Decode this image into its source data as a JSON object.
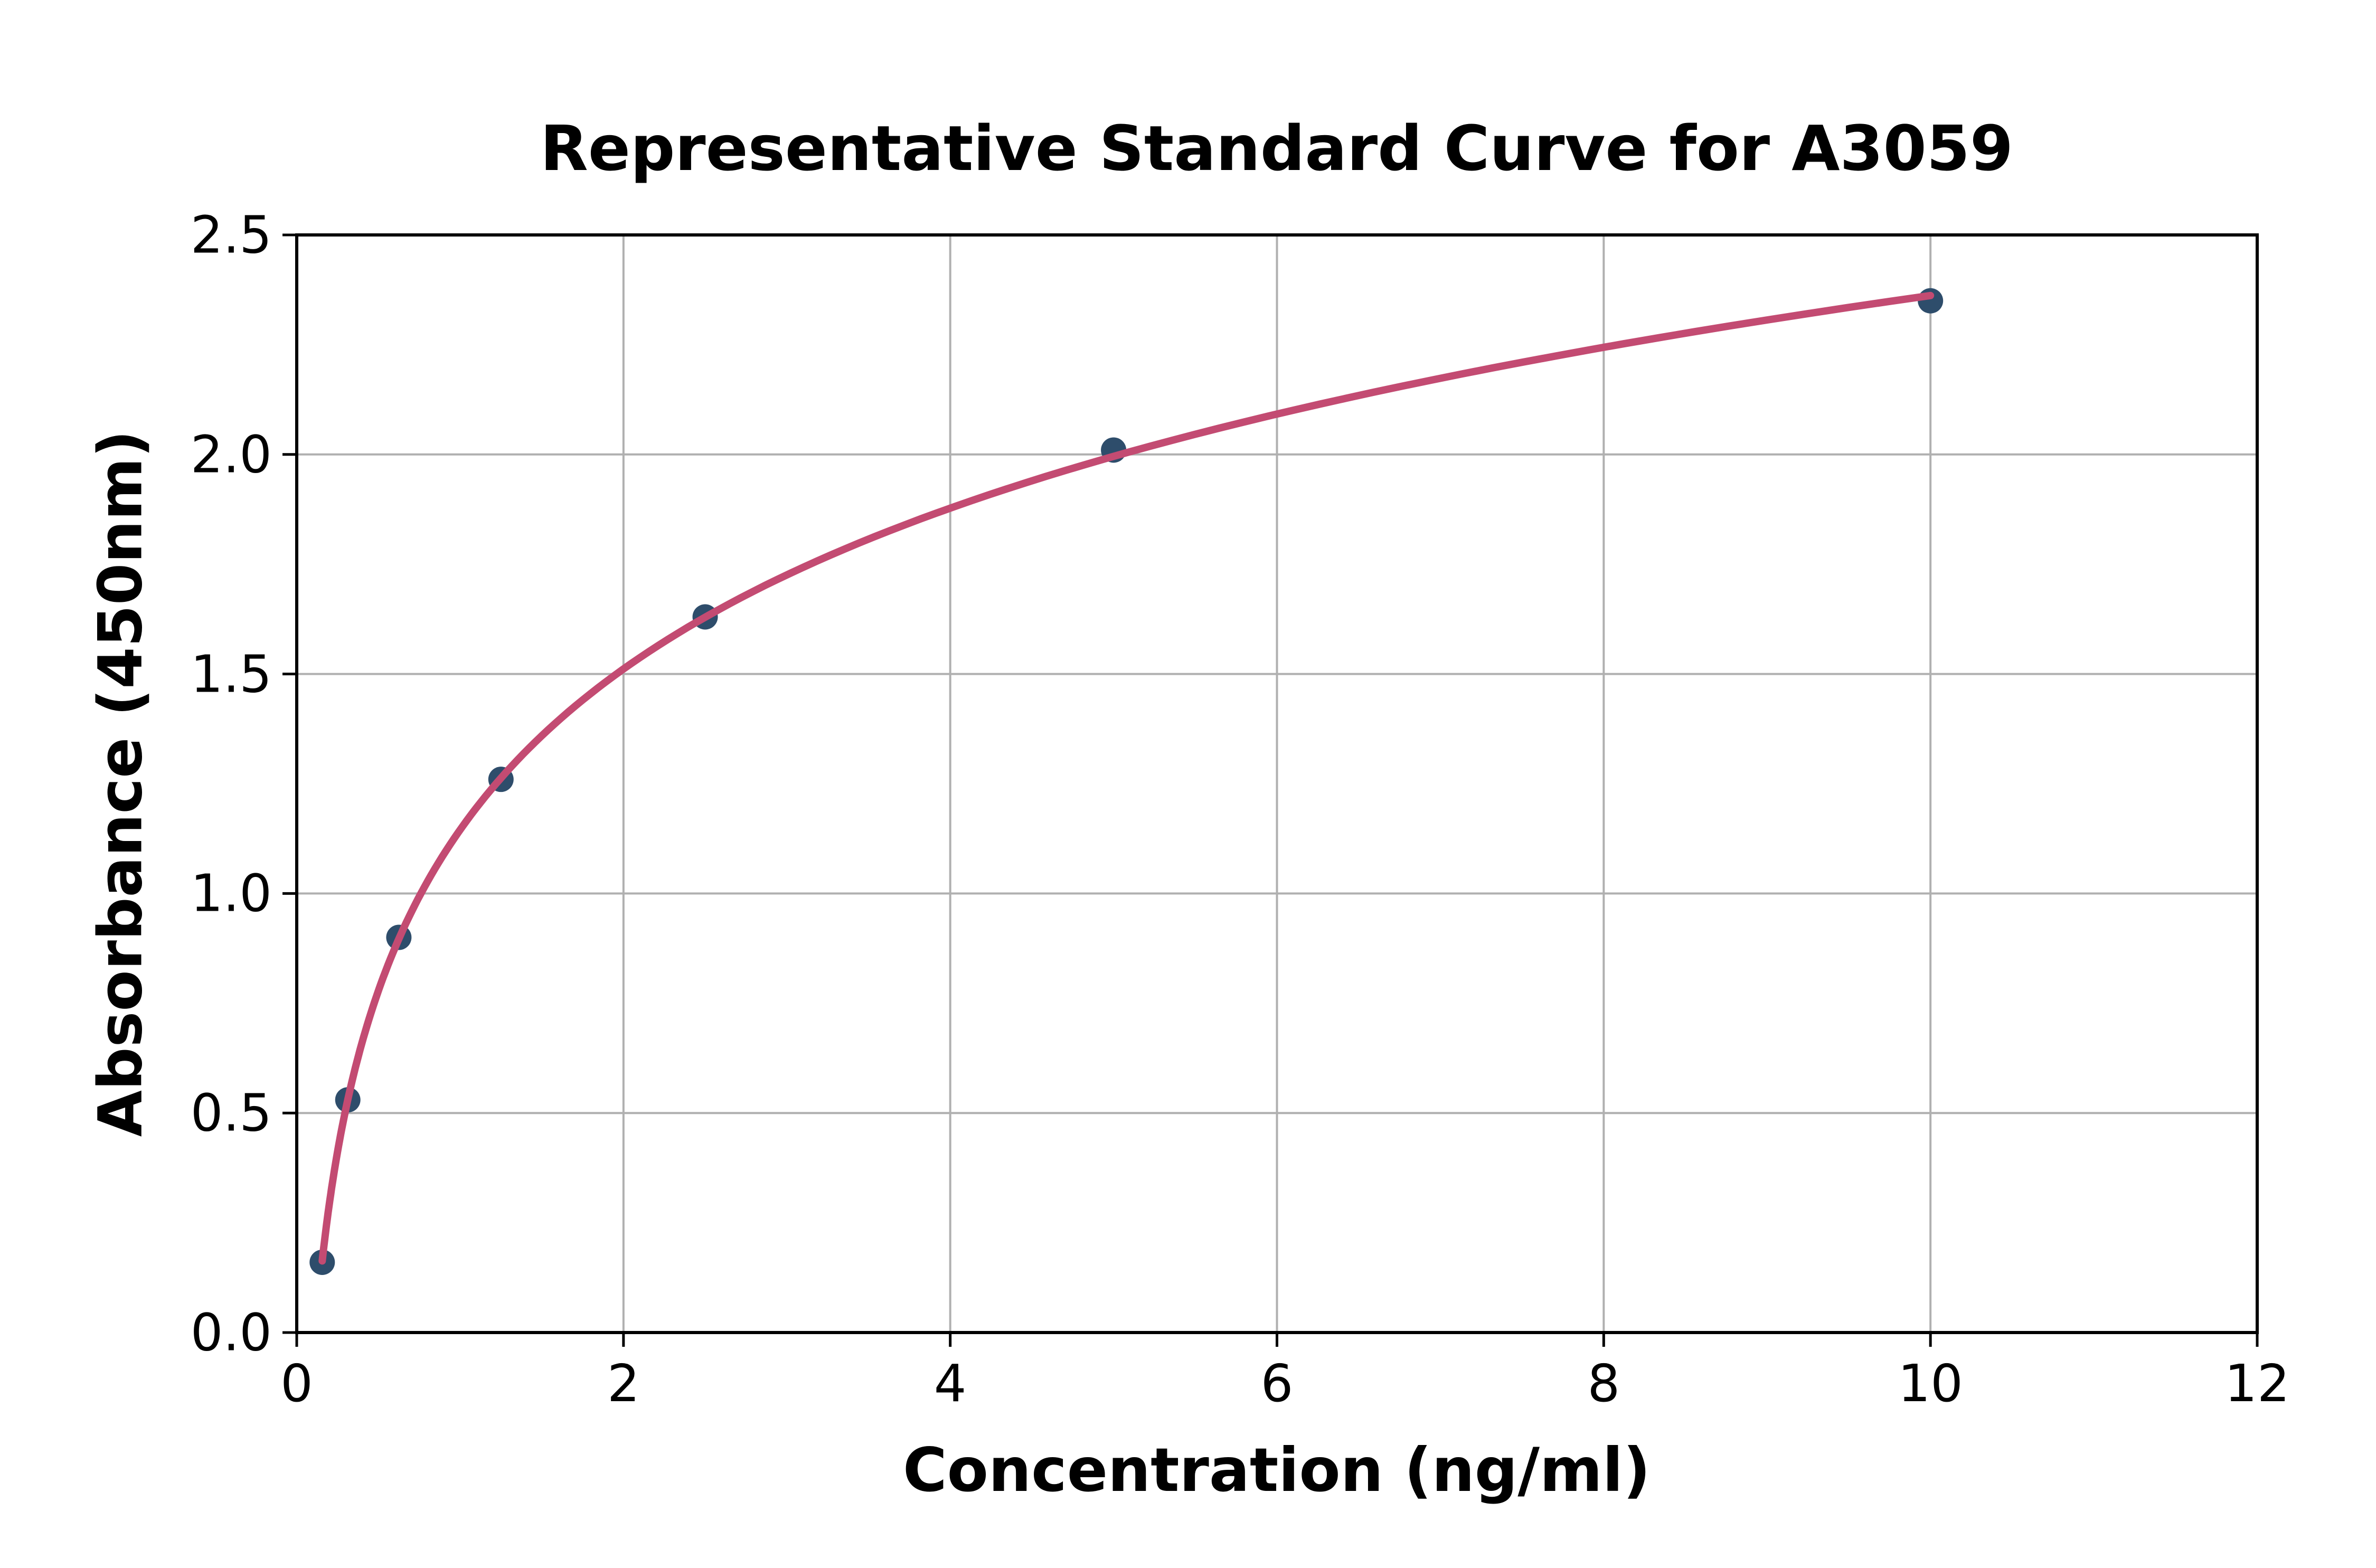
{
  "figure": {
    "background": "#ffffff"
  },
  "chart_data": {
    "type": "scatter",
    "title": "Representative Standard Curve for A3059",
    "xlabel": "Concentration (ng/ml)",
    "ylabel": "Absorbance (450nm)",
    "xlim": [
      0,
      12
    ],
    "ylim": [
      0,
      2.5
    ],
    "x_ticks": [
      0,
      2,
      4,
      6,
      8,
      10,
      12
    ],
    "x_tick_labels": [
      "0",
      "2",
      "4",
      "6",
      "8",
      "10",
      "12"
    ],
    "y_ticks": [
      0,
      0.5,
      1,
      1.5,
      2,
      2.5
    ],
    "y_tick_labels": [
      "0.0",
      "0.5",
      "1.0",
      "1.5",
      "2.0",
      "2.5"
    ],
    "grid": true,
    "legend": "none",
    "series": [
      {
        "name": "standard-points",
        "type": "scatter",
        "marker": "circle",
        "color": "#2e4d6b",
        "x": [
          0.156,
          0.3125,
          0.625,
          1.25,
          2.5,
          5,
          10
        ],
        "y": [
          0.16,
          0.53,
          0.9,
          1.26,
          1.63,
          2.01,
          2.35
        ]
      },
      {
        "name": "fitted-curve",
        "type": "line",
        "fit": "logarithmic",
        "x_range": [
          0.156,
          10
        ],
        "color": "#c34b72"
      }
    ],
    "grid_color": "#b0b0b0",
    "axis_color": "#000000"
  }
}
